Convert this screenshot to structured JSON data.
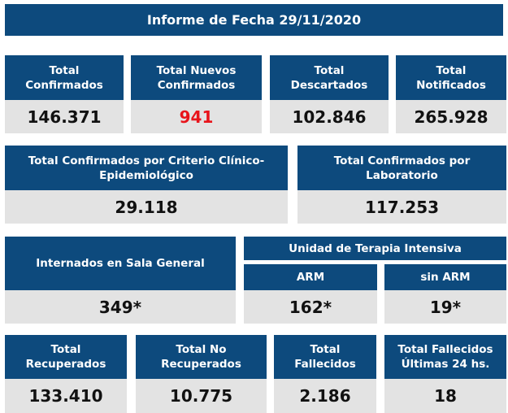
{
  "title": "Informe de Fecha 29/11/2020",
  "row1": [
    {
      "label": "Total\nConfirmados",
      "value": "146.371"
    },
    {
      "label": "Total Nuevos\nConfirmados",
      "value": "941"
    },
    {
      "label": "Total\nDescartados",
      "value": "102.846"
    },
    {
      "label": "Total\nNotificados",
      "value": "265.928"
    }
  ],
  "row2": [
    {
      "label": "Total Confirmados por Criterio Clínico-\nEpidemiológico",
      "value": "29.118"
    },
    {
      "label": "Total Confirmados por\nLaboratorio",
      "value": "117.253"
    }
  ],
  "row3": {
    "sala_general": {
      "label": "Internados en Sala General",
      "value": "349*"
    },
    "uti": {
      "label": "Unidad de Terapia Intensiva",
      "arm": {
        "label": "ARM",
        "value": "162*"
      },
      "sin_arm": {
        "label": "sin ARM",
        "value": "19*"
      }
    }
  },
  "row4": [
    {
      "label": "Total\nRecuperados",
      "value": "133.410"
    },
    {
      "label": "Total No\nRecuperados",
      "value": "10.775"
    },
    {
      "label": "Total\nFallecidos",
      "value": "2.186"
    },
    {
      "label": "Total Fallecidos\nÚltimas 24 hs.",
      "value": "18"
    }
  ],
  "colors": {
    "header_bg": "#0d4a7d",
    "value_bg": "#e3e3e3",
    "highlight": "#e8141b"
  }
}
